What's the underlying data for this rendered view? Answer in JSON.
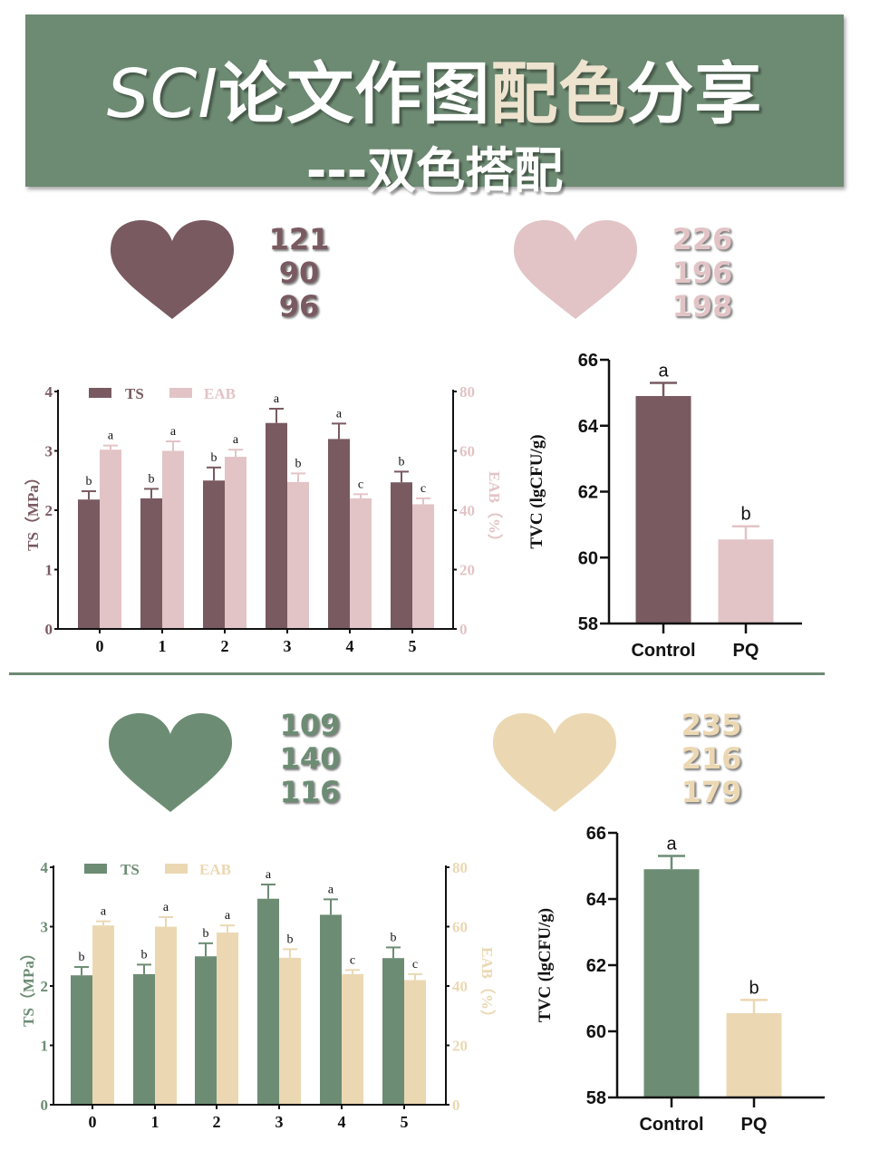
{
  "banner": {
    "title_prefix": "SCI",
    "title_mid": "论文作图",
    "title_highlight": "配色",
    "title_suffix": "分享",
    "subtitle": "---双色搭配",
    "background": "#6d8a72"
  },
  "palettes": [
    {
      "name": "mauve",
      "icon": "heart-icon",
      "color": "#795a60",
      "rgb": [
        "121",
        "90",
        "96"
      ]
    },
    {
      "name": "pink",
      "icon": "heart-icon",
      "color": "#e2c4c6",
      "rgb": [
        "226",
        "196",
        "198"
      ]
    },
    {
      "name": "green",
      "icon": "heart-icon",
      "color": "#6d8c74",
      "rgb": [
        "109",
        "140",
        "116"
      ]
    },
    {
      "name": "beige",
      "icon": "heart-icon",
      "color": "#ebd8b3",
      "rgb": [
        "235",
        "216",
        "179"
      ]
    }
  ],
  "chart_data": [
    {
      "type": "bar",
      "categories": [
        "0",
        "1",
        "2",
        "3",
        "4",
        "5"
      ],
      "series": [
        {
          "name": "TS",
          "axis": "left",
          "color": "#795a60",
          "values": [
            2.18,
            2.2,
            2.5,
            3.47,
            3.2,
            2.47
          ],
          "error": [
            0.14,
            0.16,
            0.22,
            0.24,
            0.26,
            0.18
          ],
          "letters": [
            "b",
            "b",
            "b",
            "a",
            "a",
            "b"
          ]
        },
        {
          "name": "EAB",
          "axis": "right",
          "color": "#e2c4c6",
          "values": [
            60.4,
            60,
            58,
            49.5,
            44,
            42
          ],
          "error": [
            1.4,
            3.2,
            2.4,
            2.9,
            1.4,
            2.0
          ],
          "letters": [
            "a",
            "a",
            "a",
            "b",
            "c",
            "c"
          ]
        }
      ],
      "ylabel": "TS（MPa）",
      "ylim": [
        0,
        4
      ],
      "yticks": [
        "0",
        "1",
        "2",
        "3",
        "4"
      ],
      "y2label": "EAB（%）",
      "y2lim": [
        0,
        80
      ],
      "y2ticks": [
        "0",
        "20",
        "40",
        "60",
        "80"
      ],
      "legend": "top-left",
      "grid": false
    },
    {
      "type": "bar",
      "categories": [
        "Control",
        "PQ"
      ],
      "values": [
        64.9,
        60.55
      ],
      "error": [
        0.4,
        0.4
      ],
      "letters": [
        "a",
        "b"
      ],
      "colors": [
        "#795a60",
        "#e2c4c6"
      ],
      "ylabel": "TVC (lgCFU/g)",
      "ylim": [
        58,
        66
      ],
      "yticks": [
        "58",
        "60",
        "62",
        "64",
        "66"
      ],
      "grid": false
    },
    {
      "type": "bar",
      "categories": [
        "0",
        "1",
        "2",
        "3",
        "4",
        "5"
      ],
      "series": [
        {
          "name": "TS",
          "axis": "left",
          "color": "#6d8c74",
          "values": [
            2.18,
            2.2,
            2.5,
            3.47,
            3.2,
            2.47
          ],
          "error": [
            0.14,
            0.16,
            0.22,
            0.24,
            0.26,
            0.18
          ],
          "letters": [
            "b",
            "b",
            "b",
            "a",
            "a",
            "b"
          ]
        },
        {
          "name": "EAB",
          "axis": "right",
          "color": "#ebd8b3",
          "values": [
            60.4,
            60,
            58,
            49.5,
            44,
            42
          ],
          "error": [
            1.4,
            3.2,
            2.4,
            2.9,
            1.4,
            2.0
          ],
          "letters": [
            "a",
            "a",
            "a",
            "b",
            "c",
            "c"
          ]
        }
      ],
      "ylabel": "TS（MPa）",
      "ylim": [
        0,
        4
      ],
      "yticks": [
        "0",
        "1",
        "2",
        "3",
        "4"
      ],
      "y2label": "EAB（%）",
      "y2lim": [
        0,
        80
      ],
      "y2ticks": [
        "0",
        "20",
        "40",
        "60",
        "80"
      ],
      "legend": "top-left",
      "grid": false
    },
    {
      "type": "bar",
      "categories": [
        "Control",
        "PQ"
      ],
      "values": [
        64.9,
        60.55
      ],
      "error": [
        0.4,
        0.4
      ],
      "letters": [
        "a",
        "b"
      ],
      "colors": [
        "#6d8c74",
        "#ebd8b3"
      ],
      "ylabel": "TVC (lgCFU/g)",
      "ylim": [
        58,
        66
      ],
      "yticks": [
        "58",
        "60",
        "62",
        "64",
        "66"
      ],
      "grid": false
    }
  ]
}
